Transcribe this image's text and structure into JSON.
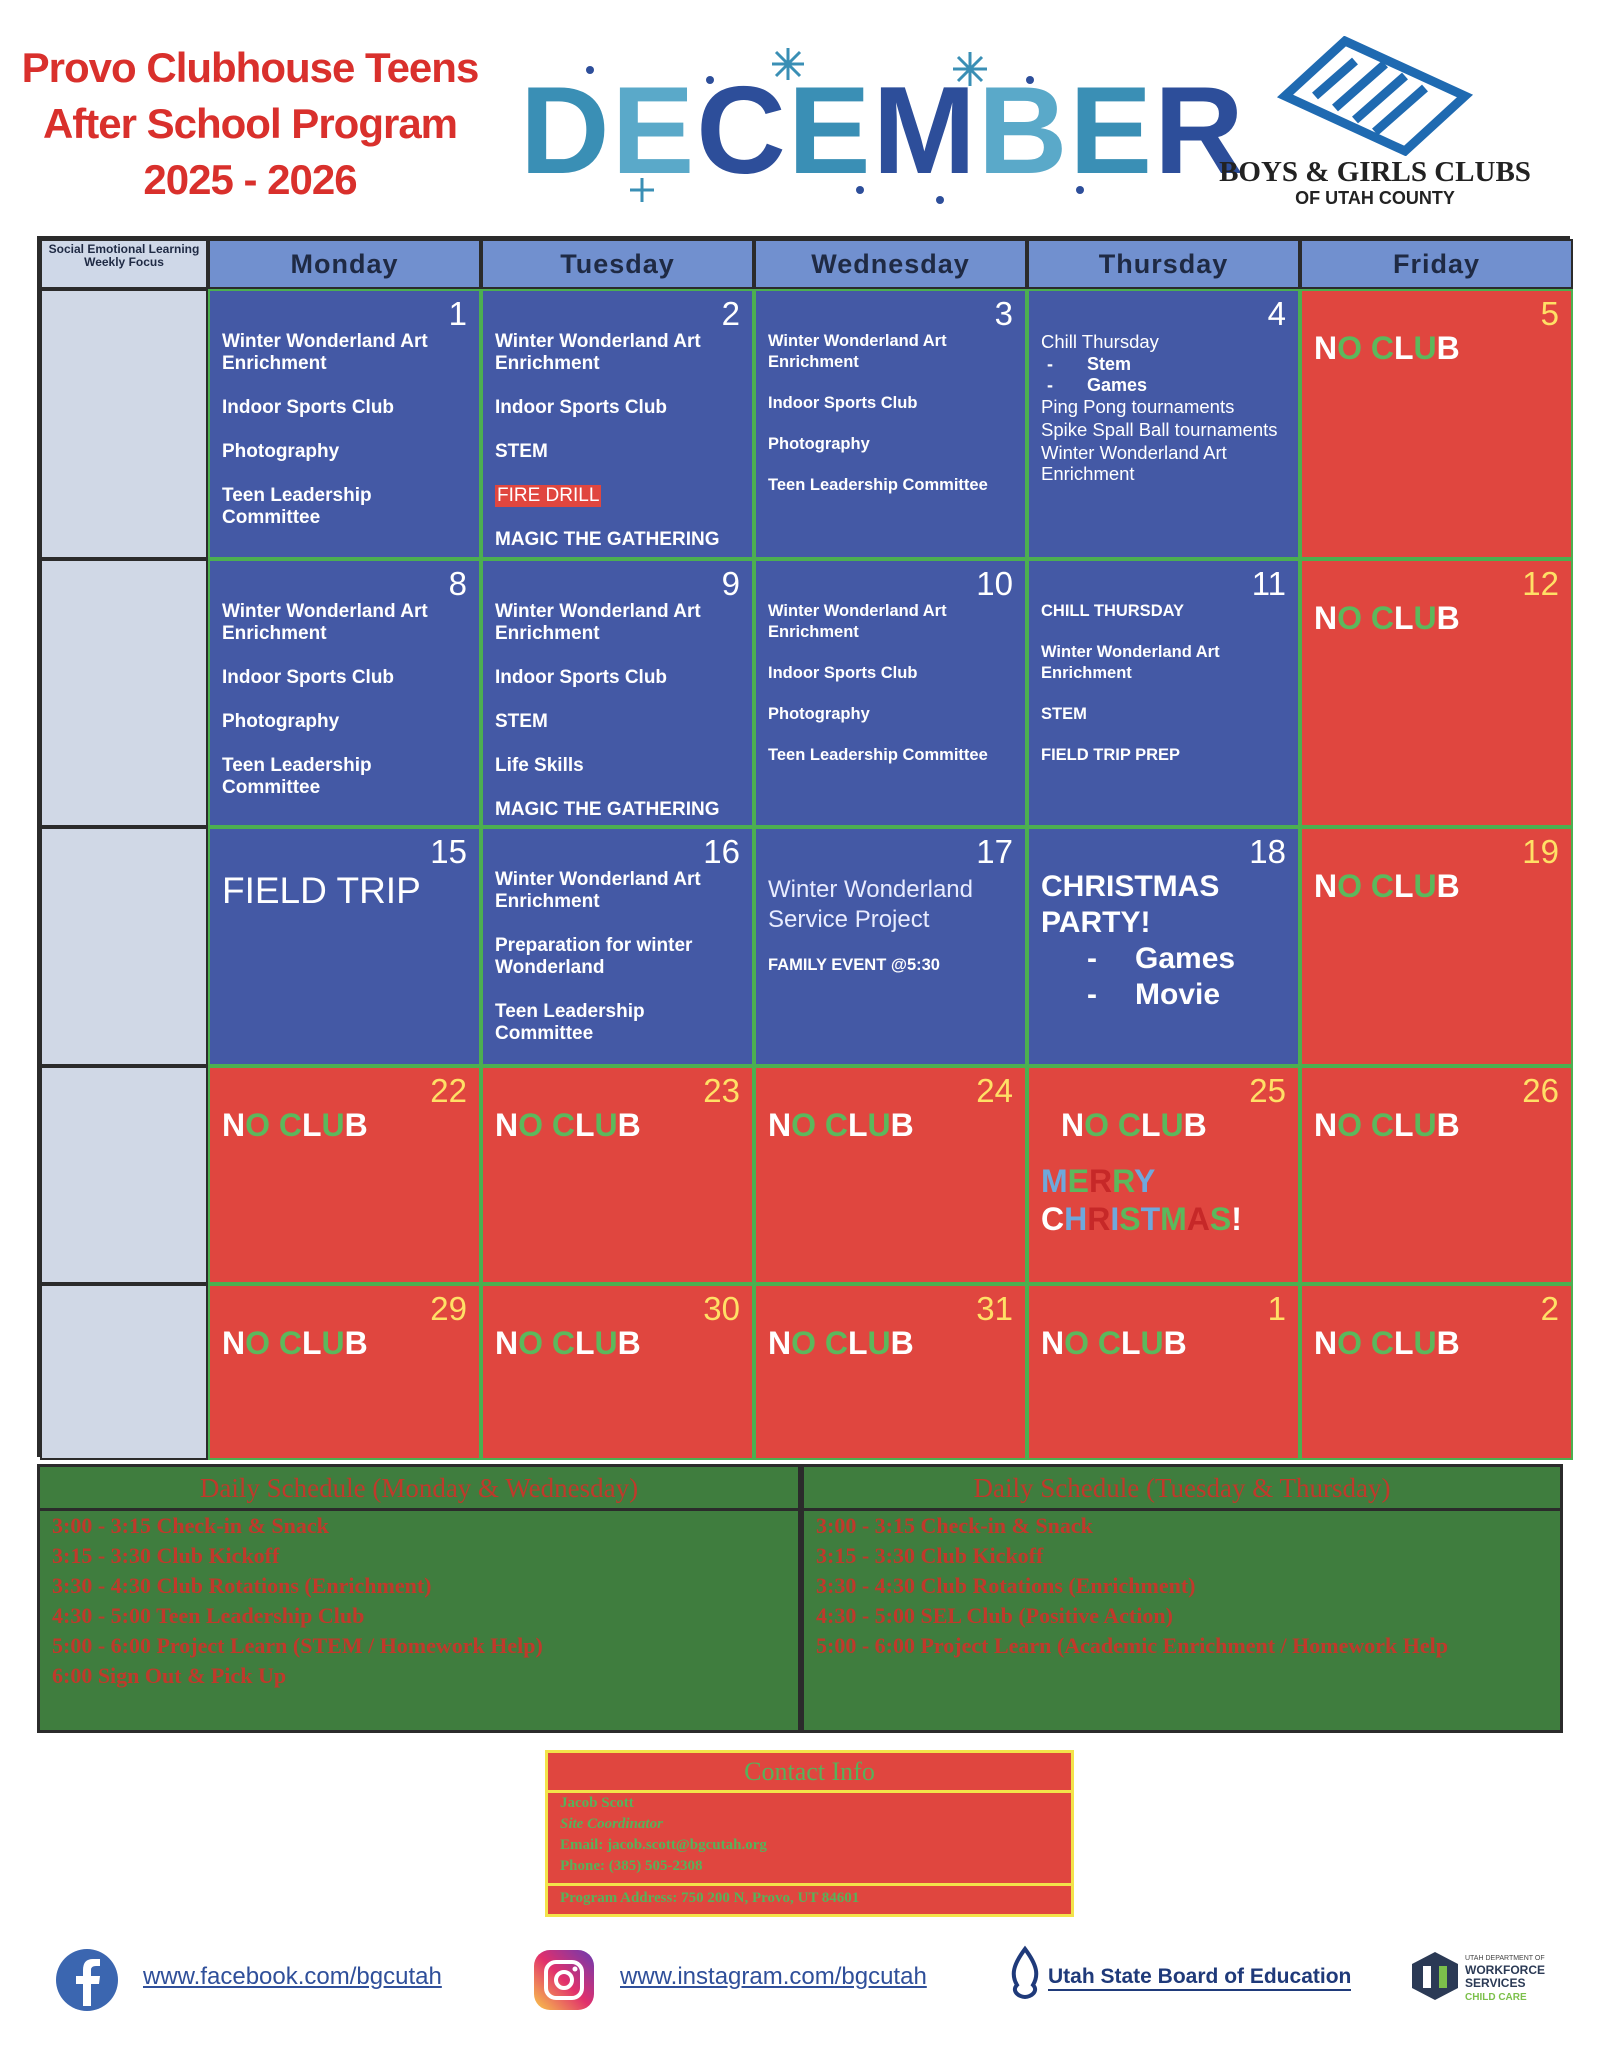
{
  "header": {
    "title_lines": [
      "Provo Clubhouse Teens",
      "After School Program",
      "2025 - 2026"
    ],
    "month": "DECEMBER",
    "org_name": "BOYS & GIRLS CLUBS",
    "org_sub": "OF UTAH COUNTY"
  },
  "calendar": {
    "sel_heading": "Social Emotional Learning Weekly Focus",
    "days": [
      "Monday",
      "Tuesday",
      "Wednesday",
      "Thursday",
      "Friday"
    ],
    "weeks": [
      {
        "cells": [
          {
            "date": 1,
            "closed": false,
            "items": [
              "Winter Wonderland Art Enrichment",
              "Indoor Sports Club",
              "Photography",
              "Teen Leadership Committee"
            ]
          },
          {
            "date": 2,
            "closed": false,
            "items": [
              "Winter Wonderland Art Enrichment",
              "Indoor Sports Club",
              "STEM",
              "FIRE DRILL",
              "MAGIC THE GATHERING"
            ]
          },
          {
            "date": 3,
            "closed": false,
            "items": [
              "Winter Wonderland Art Enrichment",
              "Indoor Sports Club",
              "Photography",
              "Teen Leadership Committee"
            ]
          },
          {
            "date": 4,
            "closed": false,
            "items": [
              "Chill Thursday",
              "Stem",
              "Games",
              "Ping Pong tournaments",
              "Spike Spall Ball tournaments",
              "Winter Wonderland Art Enrichment"
            ]
          },
          {
            "date": 5,
            "closed": true,
            "items": [
              "NO CLUB"
            ]
          }
        ]
      },
      {
        "cells": [
          {
            "date": 8,
            "closed": false,
            "items": [
              "Winter Wonderland Art Enrichment",
              "Indoor Sports Club",
              "Photography",
              "Teen Leadership Committee"
            ]
          },
          {
            "date": 9,
            "closed": false,
            "items": [
              "Winter Wonderland Art Enrichment",
              "Indoor Sports Club",
              "STEM",
              "Life Skills",
              "MAGIC THE GATHERING"
            ]
          },
          {
            "date": 10,
            "closed": false,
            "items": [
              "Winter Wonderland Art Enrichment",
              "Indoor Sports Club",
              "Photography",
              "Teen Leadership Committee"
            ]
          },
          {
            "date": 11,
            "closed": false,
            "items": [
              "CHILL THURSDAY",
              "Winter Wonderland Art Enrichment",
              "STEM",
              "FIELD TRIP PREP"
            ]
          },
          {
            "date": 12,
            "closed": true,
            "items": [
              "NO CLUB"
            ]
          }
        ]
      },
      {
        "cells": [
          {
            "date": 15,
            "closed": false,
            "items": [
              "FIELD TRIP"
            ]
          },
          {
            "date": 16,
            "closed": false,
            "items": [
              "Winter Wonderland Art Enrichment",
              "Preparation for winter Wonderland",
              "Teen Leadership Committee"
            ]
          },
          {
            "date": 17,
            "closed": false,
            "items": [
              "Winter Wonderland Service Project",
              "FAMILY EVENT @5:30"
            ]
          },
          {
            "date": 18,
            "closed": false,
            "items": [
              "CHRISTMAS PARTY!",
              "Games",
              "Movie"
            ]
          },
          {
            "date": 19,
            "closed": true,
            "items": [
              "NO CLUB"
            ]
          }
        ]
      },
      {
        "cells": [
          {
            "date": 22,
            "closed": true,
            "items": [
              "NO CLUB"
            ]
          },
          {
            "date": 23,
            "closed": true,
            "items": [
              "NO CLUB"
            ]
          },
          {
            "date": 24,
            "closed": true,
            "items": [
              "NO CLUB"
            ]
          },
          {
            "date": 25,
            "closed": true,
            "items": [
              "NO CLUB",
              "MERRY CHRISTMAS!"
            ]
          },
          {
            "date": 26,
            "closed": true,
            "items": [
              "NO CLUB"
            ]
          }
        ]
      },
      {
        "cells": [
          {
            "date": 29,
            "closed": true,
            "items": [
              "NO CLUB"
            ]
          },
          {
            "date": 30,
            "closed": true,
            "items": [
              "NO CLUB"
            ]
          },
          {
            "date": 31,
            "closed": true,
            "items": [
              "NO CLUB"
            ]
          },
          {
            "date": 1,
            "closed": true,
            "items": [
              "NO CLUB"
            ]
          },
          {
            "date": 2,
            "closed": true,
            "items": [
              "NO CLUB"
            ]
          }
        ]
      }
    ]
  },
  "schedules": [
    {
      "title": "Daily Schedule (Monday & Wednesday)",
      "lines": [
        "3:00 - 3:15 Check-in & Snack",
        "3:15 - 3:30 Club Kickoff",
        "3:30 - 4:30 Club Rotations (Enrichment)",
        "4:30 - 5:00  Teen Leadership Club",
        "5:00 - 6:00 Project Learn (STEM / Homework Help)",
        "6:00 Sign Out & Pick Up"
      ]
    },
    {
      "title": "Daily Schedule (Tuesday & Thursday)",
      "lines": [
        "3:00 - 3:15 Check-in & Snack",
        "3:15 - 3:30 Club Kickoff",
        "3:30 - 4:30  Club Rotations (Enrichment)",
        "4:30 - 5:00 SEL Club (Positive Action)",
        "5:00 - 6:00 Project Learn (Academic Enrichment / Homework Help"
      ]
    }
  ],
  "contact": {
    "title": "Contact Info",
    "lines": [
      "Jacob Scott",
      "Site Coordinator",
      "Email: jacob.scott@bgcutah.org",
      "Phone: (385) 505-2308"
    ],
    "address": "Program Address: 750 200 N, Provo, UT 84601"
  },
  "footer": {
    "facebook": "www.facebook.com/bgcutah",
    "instagram": "www.instagram.com/bgcutah",
    "usbe": "Utah State Board of Education",
    "dws_top": "UTAH DEPARTMENT OF",
    "dws_name": "WORKFORCE SERVICES",
    "dws_sub": "CHILD CARE"
  }
}
